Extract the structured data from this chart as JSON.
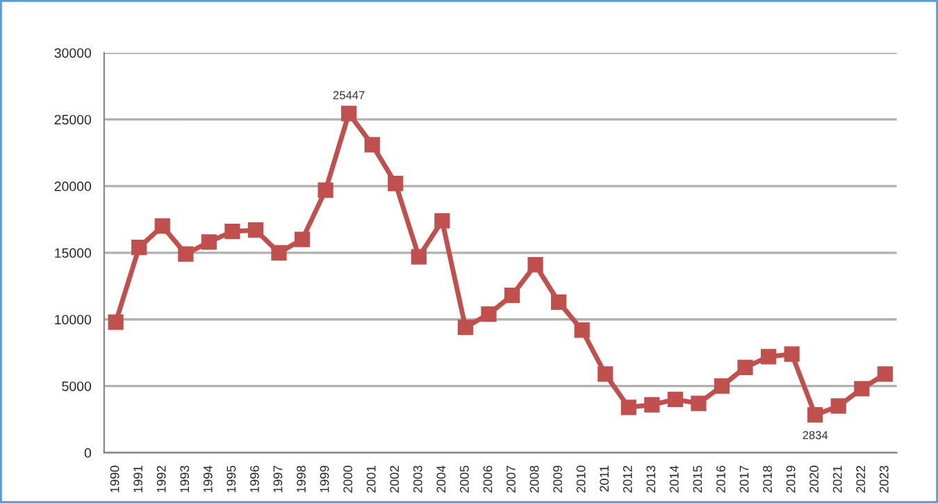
{
  "chart_data": {
    "type": "line",
    "categories": [
      "1990",
      "1991",
      "1992",
      "1993",
      "1994",
      "1995",
      "1996",
      "1997",
      "1998",
      "1999",
      "2000",
      "2001",
      "2002",
      "2003",
      "2004",
      "2005",
      "2006",
      "2007",
      "2008",
      "2009",
      "2010",
      "2011",
      "2012",
      "2013",
      "2014",
      "2015",
      "2016",
      "2017",
      "2018",
      "2019",
      "2020",
      "2021",
      "2022",
      "2023"
    ],
    "series": [
      {
        "color": "#c0504d",
        "values": [
          9800,
          15400,
          17000,
          14900,
          15800,
          16600,
          16700,
          15000,
          16000,
          19700,
          25447,
          23100,
          20200,
          14700,
          17400,
          9400,
          10400,
          11800,
          14100,
          11300,
          9200,
          5900,
          3400,
          3600,
          4000,
          3700,
          5000,
          6400,
          7200,
          7400,
          2834,
          3500,
          4800,
          5900
        ],
        "value_labels": [
          null,
          null,
          null,
          null,
          null,
          null,
          null,
          null,
          null,
          null,
          "25447",
          null,
          null,
          null,
          null,
          null,
          null,
          null,
          null,
          null,
          null,
          null,
          null,
          null,
          null,
          null,
          null,
          null,
          null,
          null,
          "2834",
          null,
          null,
          null
        ]
      }
    ],
    "ylim": [
      0,
      30000
    ],
    "yticks": [
      0,
      5000,
      10000,
      15000,
      20000,
      25000,
      30000
    ],
    "grid": "y",
    "marker": "square",
    "line_style": "solid"
  }
}
